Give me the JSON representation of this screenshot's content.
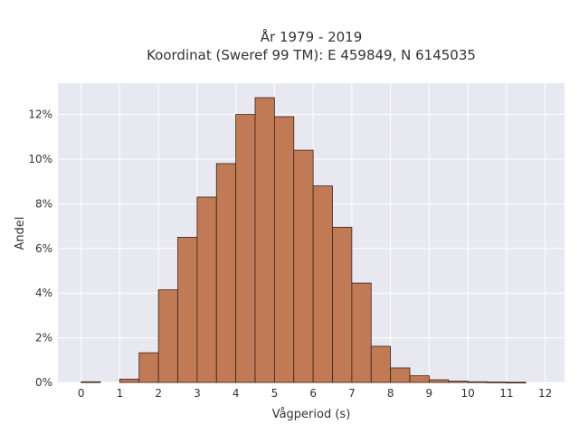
{
  "chart_data": {
    "type": "bar",
    "title_line1": "År 1979 - 2019",
    "title_line2": "Koordinat (Sweref 99 TM): E 459849, N 6145035",
    "xlabel": "Vågperiod (s)",
    "ylabel": "Andel",
    "bin_width": 0.5,
    "bins": [
      {
        "start": 0.0,
        "value": 0.03
      },
      {
        "start": 1.0,
        "value": 0.15
      },
      {
        "start": 1.5,
        "value": 1.33
      },
      {
        "start": 2.0,
        "value": 4.15
      },
      {
        "start": 2.5,
        "value": 6.5
      },
      {
        "start": 3.0,
        "value": 8.3
      },
      {
        "start": 3.5,
        "value": 9.8
      },
      {
        "start": 4.0,
        "value": 12.0
      },
      {
        "start": 4.5,
        "value": 12.75
      },
      {
        "start": 5.0,
        "value": 11.9
      },
      {
        "start": 5.5,
        "value": 10.4
      },
      {
        "start": 6.0,
        "value": 8.8
      },
      {
        "start": 6.5,
        "value": 6.95
      },
      {
        "start": 7.0,
        "value": 4.45
      },
      {
        "start": 7.5,
        "value": 1.62
      },
      {
        "start": 8.0,
        "value": 0.65
      },
      {
        "start": 8.5,
        "value": 0.3
      },
      {
        "start": 9.0,
        "value": 0.12
      },
      {
        "start": 9.5,
        "value": 0.06
      },
      {
        "start": 10.0,
        "value": 0.03
      },
      {
        "start": 10.5,
        "value": 0.02
      },
      {
        "start": 11.0,
        "value": 0.01
      }
    ],
    "xlim": [
      -0.6,
      12.5
    ],
    "ylim": [
      0,
      13.4
    ],
    "xticks": [
      0,
      1,
      2,
      3,
      4,
      5,
      6,
      7,
      8,
      9,
      10,
      11,
      12
    ],
    "xtick_labels": [
      "0",
      "1",
      "2",
      "3",
      "4",
      "5",
      "6",
      "7",
      "8",
      "9",
      "10",
      "11",
      "12"
    ],
    "yticks": [
      0,
      2,
      4,
      6,
      8,
      10,
      12
    ],
    "ytick_labels": [
      "0%",
      "2%",
      "4%",
      "6%",
      "8%",
      "10%",
      "12%"
    ],
    "grid": true,
    "colors": {
      "bar_fill": "#c07a55",
      "bar_stroke": "#3a2418",
      "plot_bg": "#e8e8f0",
      "grid": "#ffffff"
    }
  }
}
